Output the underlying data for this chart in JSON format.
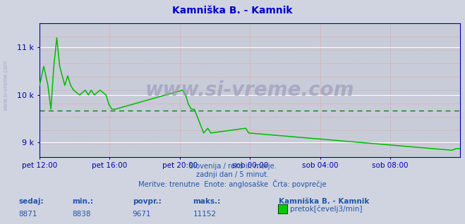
{
  "title": "Kamniška B. - Kamnik",
  "title_color": "#0000cc",
  "bg_color": "#d0d4e0",
  "plot_bg_color": "#c8ccd8",
  "grid_color_white": "#ffffff",
  "grid_color_red": "#ee8888",
  "line_color": "#00bb00",
  "avg_line_color": "#008800",
  "avg_value": 9671,
  "ylim_min": 8700,
  "ylim_max": 11500,
  "yticks": [
    9000,
    10000,
    11000
  ],
  "ytick_labels": [
    "9 k",
    "10 k",
    "11 k"
  ],
  "axis_color": "#0000aa",
  "text_color": "#2255aa",
  "footer_line1": "Slovenija / reke in morje.",
  "footer_line2": "zadnji dan / 5 minut.",
  "footer_line3": "Meritve: trenutne  Enote: anglosaške  Črta: povprečje",
  "stat_labels": [
    "sedaj:",
    "min.:",
    "povpr.:",
    "maks.:"
  ],
  "stat_values": [
    "8871",
    "8838",
    "9671",
    "11152"
  ],
  "legend_station": "Kamniška B. - Kamnik",
  "legend_label": "pretok[čevelj3/min]",
  "legend_color": "#00cc00",
  "x_tick_labels": [
    "pet 12:00",
    "pet 16:00",
    "pet 20:00",
    "sob 00:00",
    "sob 04:00",
    "sob 08:00"
  ],
  "x_tick_positions": [
    0.0,
    0.1667,
    0.3333,
    0.5,
    0.6667,
    0.8333
  ],
  "watermark": "www.si-vreme.com",
  "watermark_color": "#9999bb",
  "series_x": [
    0.0,
    0.0,
    0.01,
    0.01,
    0.02,
    0.02,
    0.027,
    0.027,
    0.034,
    0.034,
    0.041,
    0.041,
    0.048,
    0.048,
    0.06,
    0.06,
    0.067,
    0.067,
    0.074,
    0.074,
    0.081,
    0.081,
    0.095,
    0.095,
    0.109,
    0.109,
    0.116,
    0.116,
    0.123,
    0.123,
    0.13,
    0.13,
    0.144,
    0.144,
    0.158,
    0.158,
    0.165,
    0.165,
    0.172,
    0.172,
    0.18,
    0.18,
    0.34,
    0.34,
    0.347,
    0.347,
    0.354,
    0.354,
    0.361,
    0.361,
    0.368,
    0.368,
    0.39,
    0.39,
    0.4,
    0.4,
    0.407,
    0.407,
    0.49,
    0.49,
    0.497,
    0.497,
    0.98,
    0.98,
    0.99,
    0.99,
    1.0
  ],
  "series_y": [
    10200,
    10200,
    10600,
    10600,
    10200,
    10200,
    9700,
    9700,
    10600,
    10600,
    11200,
    11200,
    10600,
    10600,
    10200,
    10200,
    10400,
    10400,
    10200,
    10200,
    10100,
    10100,
    10000,
    10000,
    10100,
    10100,
    10000,
    10000,
    10100,
    10100,
    10000,
    10000,
    10100,
    10100,
    10000,
    10000,
    9800,
    9800,
    9700,
    9700,
    9700,
    9700,
    10100,
    10100,
    10000,
    10000,
    9800,
    9800,
    9700,
    9700,
    9700,
    9700,
    9200,
    9200,
    9300,
    9300,
    9200,
    9200,
    9300,
    9300,
    9200,
    9200,
    8838,
    8838,
    8871,
    8871,
    8871
  ]
}
